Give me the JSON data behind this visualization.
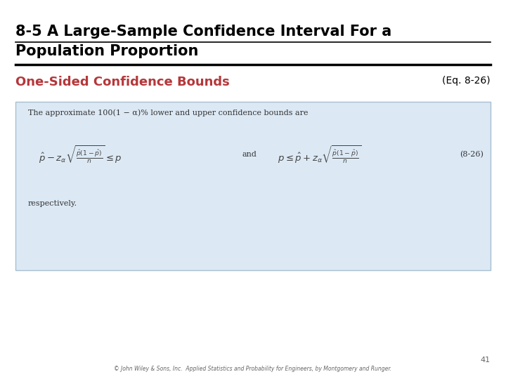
{
  "title_line1": "8-5 A Large-Sample Confidence Interval For a",
  "title_line2": "Population Proportion",
  "subtitle": "One-Sided Confidence Bounds",
  "eq_label": "(Eq. 8-26)",
  "subtitle_color": "#B5373A",
  "title_color": "#000000",
  "bg_color": "#FFFFFF",
  "box_bg_color": "#DCE9F5",
  "box_border_color": "#A8BFD0",
  "footer_text": "© John Wiley & Sons, Inc.  Applied Statistics and Probability for Engineers, by Montgomery and Runger.",
  "page_number": "41",
  "box_text_line1": "The approximate 100(1 − α)% lower and upper confidence bounds are",
  "box_text_line2": "$\\hat{p} - z_{\\alpha}\\sqrt{\\frac{\\hat{p}(1-\\hat{p})}{n}} \\leq p$",
  "box_text_and": "and",
  "box_text_line3": "$p \\leq \\hat{p} + z_{\\alpha}\\sqrt{\\frac{\\hat{p}(1-\\hat{p})}{n}}$",
  "box_eq_label": "(8-26)",
  "box_text_line4": "respectively.",
  "title_fontsize": 15,
  "subtitle_fontsize": 13,
  "eq_label_fontsize": 10,
  "body_fontsize": 8,
  "formula_fontsize": 9.5,
  "footer_fontsize": 5.5,
  "page_fontsize": 8
}
